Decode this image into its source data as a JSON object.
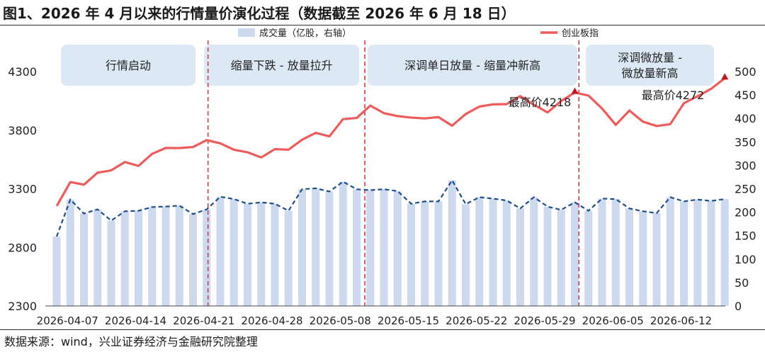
{
  "title": "图1、2026 年 4 月以来的行情量价演化过程（数据截至 2026 年 6 月 18 日）",
  "source": "数据来源：wind，兴业证券经济与金融研究院整理",
  "colors": {
    "bar": "#cdd9ee",
    "price_line": "#ef5a5a",
    "volume_line": "#1f4e8c",
    "divider": "#e8323b",
    "phase_box": "#dce9f5",
    "marker": "#c0141e"
  },
  "chart_data": {
    "type": "bar+line",
    "legend": [
      {
        "label": "成交量（亿股，右轴）",
        "kind": "bar"
      },
      {
        "label": "创业板指",
        "kind": "line"
      }
    ],
    "legend_position": "top",
    "left_axis": {
      "min": 2300,
      "max": 4300,
      "ticks": [
        "2300",
        "2800",
        "3300",
        "3800",
        "4300"
      ]
    },
    "right_axis": {
      "min": 0,
      "max": 500,
      "ticks": [
        "0",
        "50",
        "100",
        "150",
        "200",
        "250",
        "300",
        "350",
        "400",
        "450",
        "500"
      ]
    },
    "x_tick_labels": [
      "2026-04-07",
      "2026-04-14",
      "2026-04-21",
      "2026-04-28",
      "2026-05-08",
      "2026-05-15",
      "2026-05-22",
      "2026-05-29",
      "2026-06-05",
      "2026-06-12"
    ],
    "x_tick_index": [
      1,
      6,
      11,
      16,
      21,
      26,
      31,
      36,
      41,
      46
    ],
    "grid": false,
    "series": [
      {
        "name": "成交量（亿股，右轴）",
        "axis": "right",
        "style": "bar + dashed line",
        "values": [
          148,
          227,
          197,
          206,
          182,
          202,
          203,
          211,
          212,
          214,
          196,
          206,
          233,
          228,
          218,
          221,
          218,
          203,
          249,
          251,
          244,
          265,
          249,
          247,
          249,
          245,
          218,
          223,
          223,
          268,
          217,
          232,
          229,
          225,
          208,
          232,
          212,
          205,
          221,
          203,
          229,
          228,
          208,
          202,
          198,
          232,
          223,
          227,
          224,
          228
        ]
      },
      {
        "name": "创业板指",
        "axis": "left",
        "style": "line",
        "values": [
          3153,
          3357,
          3335,
          3437,
          3457,
          3528,
          3495,
          3598,
          3648,
          3647,
          3656,
          3715,
          3687,
          3633,
          3611,
          3567,
          3638,
          3633,
          3719,
          3777,
          3747,
          3894,
          3904,
          4009,
          3945,
          3920,
          3907,
          3900,
          3911,
          3838,
          3938,
          4001,
          4020,
          4022,
          4090,
          4017,
          3951,
          4049,
          4121,
          4095,
          3984,
          3845,
          3967,
          3872,
          3835,
          3851,
          4030,
          4089,
          4153,
          4243
        ]
      }
    ],
    "phases": [
      {
        "label_lines": [
          "行情启动"
        ],
        "start": 0,
        "end": 10.5
      },
      {
        "label_lines": [
          "缩量下跌 - 放量拉升"
        ],
        "start": 10.5,
        "end": 22.5
      },
      {
        "label_lines": [
          "深调单日放量 - 缩量冲新高"
        ],
        "start": 22.5,
        "end": 38.5
      },
      {
        "label_lines": [
          "深调微放量 -",
          "微放量新高"
        ],
        "start": 38.5,
        "end": 49
      }
    ],
    "divider_index": [
      11.1,
      22.6,
      38.3
    ],
    "annotations": [
      {
        "text": "最高价4218",
        "series": "创业板指",
        "index": 38,
        "value": 4218
      },
      {
        "text": "最高价4272",
        "series": "创业板指",
        "index": 49,
        "value": 4272
      }
    ]
  }
}
